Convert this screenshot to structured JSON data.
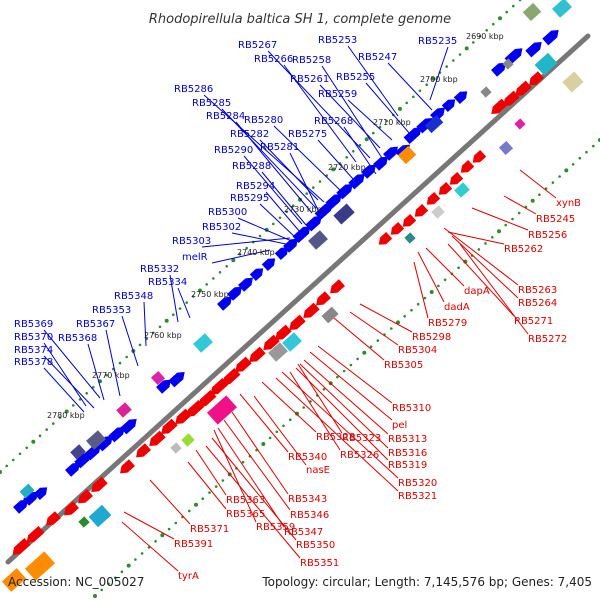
{
  "title": "Rhodopirellula baltica SH 1, complete genome",
  "accession": "Accession: NC_005027",
  "topology": "Topology: circular; Length: 7,145,576 bp; Genes: 7,405",
  "colors": {
    "forward_label": "#0000cc",
    "reverse_label": "#dd0000",
    "forward_gene": "#0000ee",
    "reverse_gene": "#ee0000",
    "backbone": "#777777",
    "tick": "#2e8b2e"
  },
  "kbp_ticks": [
    "2690 kbp",
    "2700 kbp",
    "2710 kbp",
    "2720 kbp",
    "2730 kbp",
    "2740 kbp",
    "2750 kbp",
    "2760 kbp",
    "2770 kbp",
    "2780 kbp"
  ],
  "forward_labels": [
    "RB5235",
    "RB5253",
    "RB5247",
    "RB5267",
    "RB5266",
    "RB5258",
    "RB5255",
    "RB5261",
    "RB5259",
    "RB5286",
    "RB5285",
    "RB5284",
    "RB5280",
    "RB5268",
    "RB5282",
    "RB5275",
    "RB5290",
    "RB5281",
    "RB5288",
    "RB5294",
    "RB5295",
    "RB5300",
    "RB5302",
    "RB5303",
    "melR",
    "RB5332",
    "RB5334",
    "RB5348",
    "RB5353",
    "RB5369",
    "RB5367",
    "RB5370",
    "RB5368",
    "RB5374",
    "RB5378"
  ],
  "reverse_labels": [
    "xynB",
    "RB5245",
    "RB5256",
    "RB5262",
    "RB5263",
    "dapA",
    "RB5264",
    "dadA",
    "RB5271",
    "RB5279",
    "RB5272",
    "RB5298",
    "RB5304",
    "RB5305",
    "RB5310",
    "pel",
    "RB5313",
    "RB5328",
    "RB5323",
    "RB5316",
    "RB5326",
    "RB5319",
    "RB5340",
    "nasE",
    "RB5320",
    "RB5321",
    "RB5343",
    "RB5363",
    "RB5346",
    "RB5365",
    "RB5359",
    "RB5347",
    "RB5371",
    "RB5350",
    "RB5391",
    "RB5351",
    "tyrA"
  ]
}
